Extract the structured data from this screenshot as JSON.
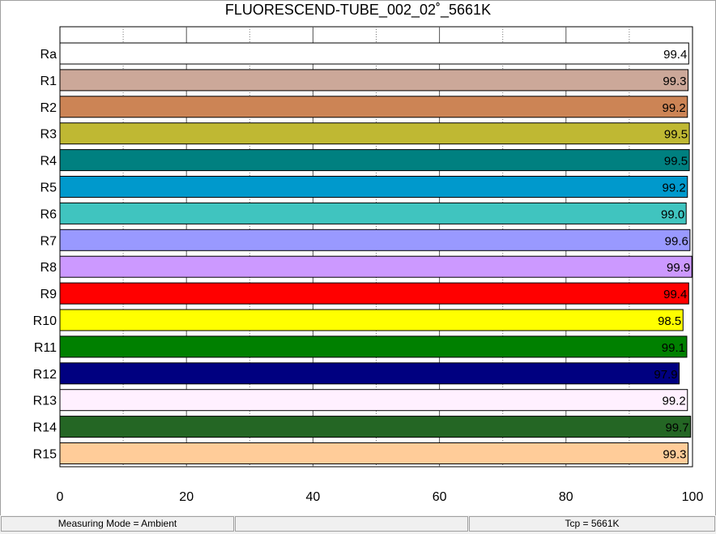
{
  "chart_data": {
    "type": "bar",
    "orientation": "horizontal",
    "title": "FLUORESCEND-TUBE_002_02˚_5661K",
    "categories": [
      "Ra",
      "R1",
      "R2",
      "R3",
      "R4",
      "R5",
      "R6",
      "R7",
      "R8",
      "R9",
      "R10",
      "R11",
      "R12",
      "R13",
      "R14",
      "R15"
    ],
    "values": [
      99.4,
      99.3,
      99.2,
      99.5,
      99.5,
      99.2,
      99.0,
      99.6,
      99.9,
      99.4,
      98.5,
      99.1,
      97.9,
      99.2,
      99.7,
      99.3
    ],
    "value_labels": [
      "99.4",
      "99.3",
      "99.2",
      "99.5",
      "99.5",
      "99.2",
      "99.0",
      "99.6",
      "99.9",
      "99.4",
      "98.5",
      "99.1",
      "97.9",
      "99.2",
      "99.7",
      "99.3"
    ],
    "colors": [
      "#ffffff",
      "#cca899",
      "#cc8455",
      "#bfb833",
      "#008080",
      "#0099cc",
      "#40c4bf",
      "#9999ff",
      "#cc99ff",
      "#ff0000",
      "#ffff00",
      "#008000",
      "#000080",
      "#fff0ff",
      "#246624",
      "#ffcc99"
    ],
    "xlim": [
      0,
      100
    ],
    "xticks": [
      "0",
      "20",
      "40",
      "60",
      "80",
      "100"
    ],
    "grid": true
  },
  "statusbar": {
    "measuring_mode": "Measuring Mode = Ambient",
    "middle": "",
    "tcp": "Tcp = 5661K"
  }
}
